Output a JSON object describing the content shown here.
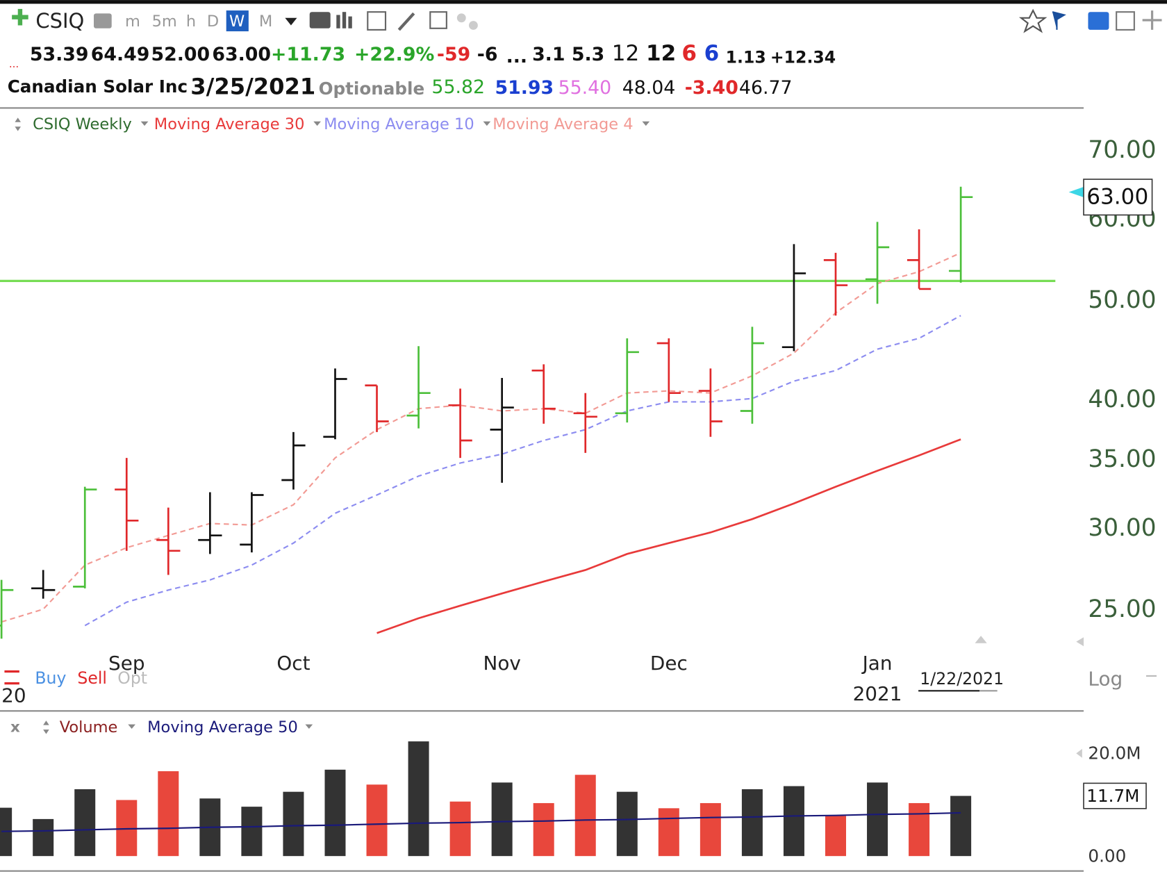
{
  "toolbar": {
    "symbol": "CSIQ",
    "intervals": [
      "m",
      "5m",
      "h",
      "D",
      "W",
      "M"
    ],
    "active_interval": 4
  },
  "quote": {
    "marker": "...",
    "line1": [
      "53.39",
      "64.49",
      "52.00",
      "63.00",
      "+11.73",
      "+22.9%",
      "-59",
      "-6",
      "...",
      "3.1",
      "5.3",
      "12",
      "12",
      "6",
      "6",
      "1.13",
      "+12.34"
    ],
    "line2": [
      "Canadian Solar Inc",
      "3/25/2021",
      "Optionable",
      "55.82",
      "51.93",
      "55.40",
      "48.04",
      "-3.40",
      "46.77"
    ]
  },
  "chart_data": [
    {
      "type": "ohlc",
      "title": "CSIQ Weekly",
      "categories": [
        null,
        null,
        null,
        "Sep",
        null,
        null,
        null,
        "Oct",
        null,
        null,
        null,
        null,
        "Nov",
        null,
        null,
        null,
        "Dec",
        null,
        null,
        null,
        null,
        "Jan",
        null,
        null
      ],
      "year_labels": {
        "left": "20",
        "right": "2021"
      },
      "cursor_date": "1/22/2021",
      "scale_label": "Log",
      "buttons": [
        "Buy",
        "Sell",
        "Opt"
      ],
      "ohlc": {
        "open": [
          24.1,
          26.2,
          26.3,
          32.7,
          29.2,
          29.2,
          28.9,
          33.4,
          36.8,
          41.3,
          38.6,
          39.5,
          37.4,
          42.7,
          38.8,
          38.8,
          45.4,
          40.8,
          39.0,
          45.0,
          54.7,
          52.4,
          54.7,
          53.39
        ],
        "high": [
          26.7,
          27.3,
          32.9,
          35.1,
          31.4,
          32.5,
          32.5,
          37.2,
          42.9,
          41.3,
          45.1,
          41.0,
          42.0,
          43.3,
          40.6,
          45.9,
          45.9,
          42.9,
          47.1,
          56.7,
          55.6,
          59.6,
          58.6,
          64.49
        ],
        "low": [
          23.4,
          25.6,
          26.2,
          28.5,
          27.0,
          28.3,
          28.4,
          32.7,
          36.6,
          37.2,
          37.5,
          35.1,
          33.2,
          37.9,
          35.5,
          38.0,
          39.8,
          36.8,
          37.9,
          44.6,
          48.3,
          49.6,
          51.3,
          52.0
        ],
        "close": [
          26.1,
          26.1,
          32.7,
          30.5,
          28.5,
          29.5,
          32.3,
          36.1,
          41.9,
          38.1,
          40.6,
          36.5,
          39.3,
          39.2,
          38.5,
          44.5,
          40.6,
          38.1,
          45.4,
          53.1,
          51.7,
          56.3,
          51.27,
          63
        ]
      },
      "value_labels": [
        null,
        null,
        null,
        null,
        null,
        null,
        null,
        null,
        null,
        null,
        null,
        null,
        null,
        null,
        null,
        null,
        null,
        null,
        null,
        null,
        null,
        null,
        null,
        "63.00"
      ],
      "bar_colors": [
        "#4cbf3a",
        "#111111",
        "#4cbf3a",
        "#e0282a",
        "#e0282a",
        "#111111",
        "#111111",
        "#111111",
        "#111111",
        "#e0282a",
        "#4cbf3a",
        "#e0282a",
        "#111111",
        "#e0282a",
        "#e0282a",
        "#4cbf3a",
        "#e0282a",
        "#e0282a",
        "#4cbf3a",
        "#111111",
        "#e0282a",
        "#4cbf3a",
        "#e0282a",
        "#4cbf3a"
      ],
      "series": [
        {
          "name": "Moving Average 30",
          "color": "#e83a3a",
          "dashed": false,
          "values": [
            null,
            null,
            null,
            null,
            null,
            null,
            null,
            null,
            null,
            23.7,
            24.5,
            25.2,
            25.9,
            26.6,
            27.3,
            28.3,
            29.0,
            29.7,
            30.6,
            31.7,
            32.9,
            34.1,
            35.3,
            36.6
          ]
        },
        {
          "name": "Moving Average 10",
          "color": "#8c8cf0",
          "dashed": true,
          "values": [
            null,
            null,
            24.1,
            25.4,
            26.1,
            26.7,
            27.6,
            29.0,
            31.0,
            32.3,
            33.7,
            34.7,
            35.4,
            36.5,
            37.4,
            39.0,
            39.8,
            39.8,
            40.1,
            41.7,
            42.7,
            44.8,
            45.9,
            48.3
          ]
        },
        {
          "name": "Moving Average 4",
          "color": "#f29a94",
          "dashed": true,
          "values": [
            24.3,
            25.0,
            27.6,
            28.7,
            29.5,
            30.3,
            30.2,
            31.6,
            35.1,
            37.4,
            39.2,
            39.5,
            39.0,
            39.2,
            38.8,
            40.6,
            40.8,
            40.6,
            42.2,
            44.4,
            48.6,
            51.9,
            53.3,
            55.6
          ]
        }
      ],
      "hline": {
        "value": 52.2,
        "color": "#77dd55"
      },
      "log_scale": true,
      "ylim": [
        23.4,
        76.3
      ],
      "yticks": [
        {
          "value": 25,
          "label": "25.00"
        },
        {
          "value": 30,
          "label": "30.00"
        },
        {
          "value": 35,
          "label": "35.00"
        },
        {
          "value": 40,
          "label": "40.00"
        },
        {
          "value": 50,
          "label": "50.00"
        },
        {
          "value": 60,
          "label": "60.00"
        },
        {
          "value": 70,
          "label": "70.00"
        }
      ]
    },
    {
      "type": "bar",
      "title": "Volume",
      "close_symbol": "x",
      "values": [
        9400000,
        7200000,
        13000000,
        10900000,
        16500000,
        11200000,
        9600000,
        12500000,
        16800000,
        13900000,
        22300000,
        10600000,
        14300000,
        10300000,
        15800000,
        12500000,
        9300000,
        10300000,
        13000000,
        13600000,
        7800000,
        14300000,
        10300000,
        11700000
      ],
      "value_labels": [
        null,
        null,
        null,
        null,
        null,
        null,
        null,
        null,
        null,
        null,
        null,
        null,
        null,
        null,
        null,
        null,
        null,
        null,
        null,
        null,
        null,
        null,
        null,
        "11.7M"
      ],
      "bar_colors": [
        "#333333",
        "#333333",
        "#333333",
        "#e8473c",
        "#e8473c",
        "#333333",
        "#333333",
        "#333333",
        "#333333",
        "#e8473c",
        "#333333",
        "#e8473c",
        "#333333",
        "#e8473c",
        "#e8473c",
        "#333333",
        "#e8473c",
        "#e8473c",
        "#333333",
        "#333333",
        "#e8473c",
        "#333333",
        "#e8473c",
        "#333333"
      ],
      "series": [
        {
          "name": "Moving Average 50",
          "color": "#1a1a7a",
          "values": [
            4800000,
            4900000,
            5100000,
            5300000,
            5400000,
            5600000,
            5700000,
            5900000,
            6000000,
            6200000,
            6400000,
            6500000,
            6700000,
            6800000,
            7000000,
            7100000,
            7300000,
            7500000,
            7600000,
            7800000,
            7900000,
            8100000,
            8200000,
            8400000
          ]
        }
      ],
      "ylim": [
        -2900000,
        27500000
      ],
      "yticks": [
        {
          "value": 0,
          "label": "0.00"
        },
        {
          "value": 20000000,
          "label": "20.0M"
        }
      ]
    }
  ]
}
